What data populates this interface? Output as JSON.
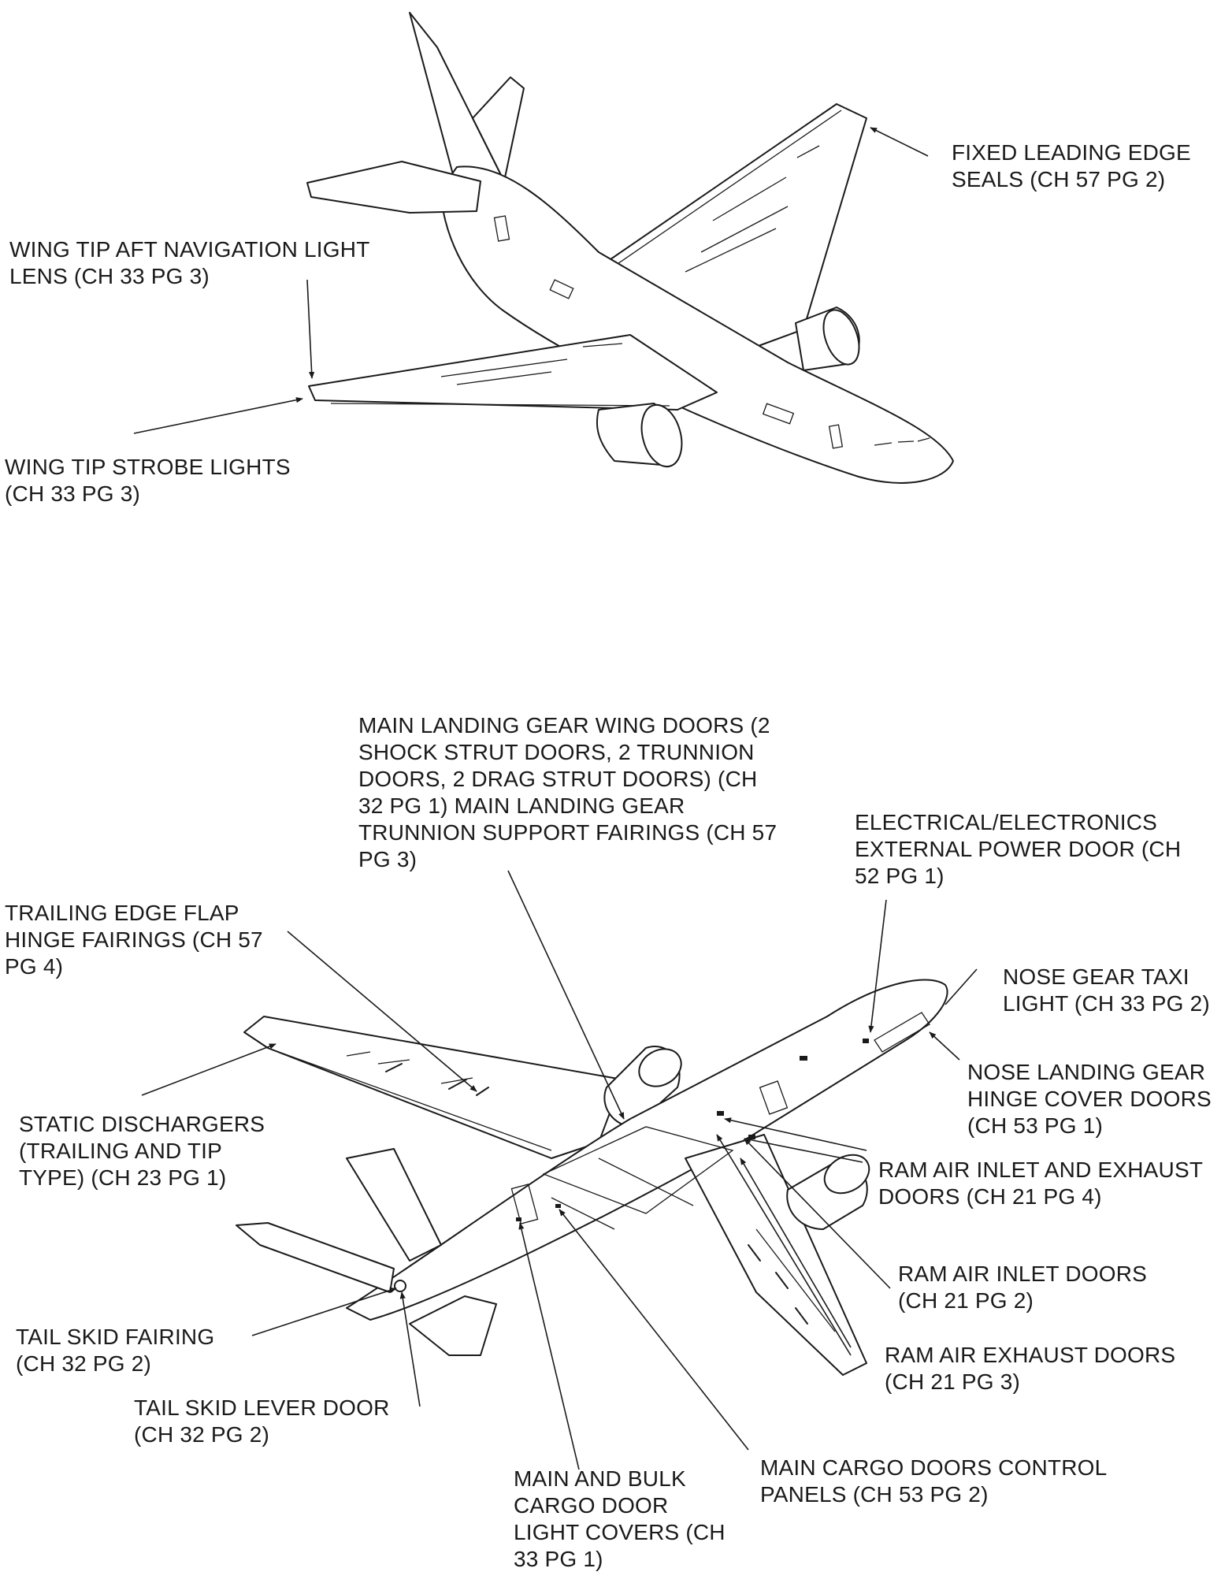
{
  "callouts": [
    {
      "id": "fixed-leading-edge-seals",
      "lines": [
        "FIXED LEADING EDGE",
        "SEALS (CH 57 PG 2)"
      ]
    },
    {
      "id": "wing-tip-aft-nav-light-lens",
      "lines": [
        "WING TIP AFT NAVIGATION LIGHT",
        "LENS (CH 33 PG 3)"
      ]
    },
    {
      "id": "wing-tip-strobe-lights",
      "lines": [
        "WING TIP STROBE LIGHTS",
        "(CH 33 PG 3)"
      ]
    },
    {
      "id": "main-landing-gear-wing-doors",
      "lines": [
        "MAIN LANDING GEAR WING DOORS (2",
        "SHOCK STRUT DOORS, 2 TRUNNION",
        "DOORS, 2 DRAG STRUT DOORS) (CH",
        "32 PG 1) MAIN LANDING GEAR",
        "TRUNNION SUPPORT FAIRINGS (CH 57",
        "PG 3)"
      ]
    },
    {
      "id": "electrical-external-power-door",
      "lines": [
        "ELECTRICAL/ELECTRONICS",
        "EXTERNAL POWER DOOR (CH",
        "52 PG 1)"
      ]
    },
    {
      "id": "trailing-edge-flap-hinge-fairings",
      "lines": [
        "TRAILING EDGE FLAP",
        "HINGE FAIRINGS (CH 57",
        "PG 4)"
      ]
    },
    {
      "id": "nose-gear-taxi-light",
      "lines": [
        "NOSE GEAR TAXI",
        "LIGHT (CH 33 PG 2)"
      ]
    },
    {
      "id": "nose-landing-gear-hinge-cover-doors",
      "lines": [
        "NOSE LANDING GEAR",
        "HINGE COVER DOORS",
        "(CH 53 PG 1)"
      ]
    },
    {
      "id": "static-dischargers",
      "lines": [
        "STATIC DISCHARGERS",
        "(TRAILING AND TIP",
        "TYPE) (CH 23 PG 1)"
      ]
    },
    {
      "id": "ram-air-inlet-and-exhaust-doors",
      "lines": [
        "RAM AIR INLET AND EXHAUST",
        "DOORS (CH 21 PG 4)"
      ]
    },
    {
      "id": "ram-air-inlet-doors",
      "lines": [
        "RAM AIR INLET DOORS",
        "(CH 21 PG 2)"
      ]
    },
    {
      "id": "tail-skid-fairing",
      "lines": [
        "TAIL SKID FAIRING",
        "(CH 32 PG 2)"
      ]
    },
    {
      "id": "ram-air-exhaust-doors",
      "lines": [
        "RAM AIR EXHAUST DOORS",
        "(CH 21 PG 3)"
      ]
    },
    {
      "id": "tail-skid-lever-door",
      "lines": [
        "TAIL SKID LEVER DOOR",
        "(CH 32 PG 2)"
      ]
    },
    {
      "id": "main-cargo-doors-control-panels",
      "lines": [
        "MAIN CARGO DOORS CONTROL",
        "PANELS (CH 53 PG 2)"
      ]
    },
    {
      "id": "main-and-bulk-cargo-door-light-covers",
      "lines": [
        "MAIN AND BULK",
        "CARGO DOOR",
        "LIGHT COVERS (CH",
        "33 PG 1)"
      ]
    }
  ]
}
